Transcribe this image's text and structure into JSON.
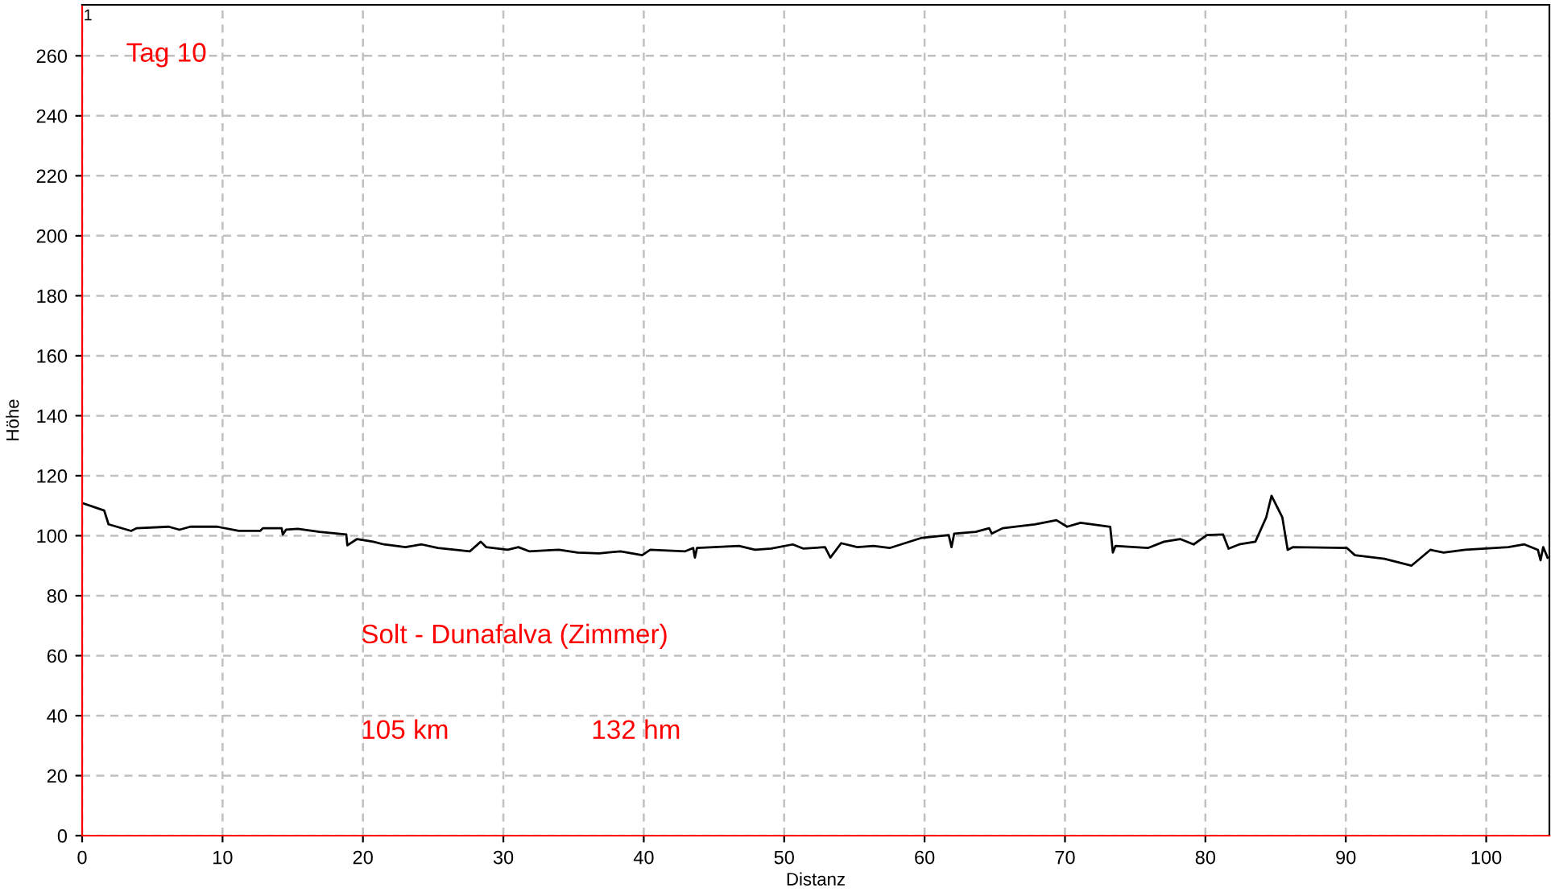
{
  "chart_data": {
    "type": "line",
    "xlabel": "Distanz",
    "ylabel": "Höhe",
    "annotations": [
      "1",
      "Tag 10",
      "Solt - Dunafalva (Zimmer)",
      "105 km",
      "132 hm"
    ],
    "xlim": [
      0,
      104.5
    ],
    "ylim": [
      0,
      277
    ],
    "xticks": [
      0,
      10,
      20,
      30,
      40,
      50,
      60,
      70,
      80,
      90,
      100
    ],
    "yticks": [
      0,
      20,
      40,
      60,
      80,
      100,
      120,
      140,
      160,
      180,
      200,
      220,
      240,
      260
    ],
    "grid": true,
    "marker": "none",
    "line_style": "solid",
    "series": [
      {
        "color": "#000000",
        "x": [
          0,
          1.57,
          1.88,
          3.49,
          3.87,
          6.17,
          6.93,
          7.7,
          9.62,
          11.15,
          12.68,
          12.87,
          14.21,
          14.29,
          14.52,
          15.36,
          16.9,
          18.81,
          18.89,
          19.58,
          20.73,
          21.49,
          23.03,
          24.18,
          25.33,
          27.62,
          28.39,
          28.77,
          30.31,
          31.07,
          31.84,
          33.37,
          33.95,
          35.29,
          36.82,
          38.35,
          39.89,
          40.46,
          42.95,
          43.52,
          43.64,
          43.79,
          46.78,
          47.93,
          49.08,
          50.61,
          51.38,
          52.91,
          53.29,
          54.06,
          55.21,
          56.36,
          57.51,
          59.81,
          61.72,
          61.92,
          62.11,
          63.64,
          64.6,
          64.79,
          65.56,
          67.85,
          69.39,
          70.15,
          71.11,
          73.22,
          73.41,
          73.6,
          75.9,
          77.05,
          78.2,
          79.16,
          80.11,
          81.26,
          81.65,
          82.41,
          83.56,
          84.33,
          84.71,
          85.48,
          85.86,
          86.25,
          90.08,
          90.65,
          92.76,
          94.67,
          96.02,
          96.97,
          98.51,
          101.57,
          102.72,
          103.68,
          103.87,
          104.06,
          104.37
        ],
        "values": [
          110.9,
          108.4,
          103.8,
          101.6,
          102.5,
          103.0,
          102.0,
          103.0,
          103.0,
          101.6,
          101.6,
          102.5,
          102.5,
          100.4,
          102.0,
          102.3,
          101.3,
          100.4,
          96.8,
          98.9,
          98.0,
          97.1,
          96.2,
          97.1,
          95.9,
          94.8,
          98.0,
          96.2,
          95.3,
          96.2,
          94.8,
          95.2,
          95.3,
          94.4,
          94.1,
          94.8,
          93.5,
          95.3,
          94.8,
          95.9,
          92.7,
          95.9,
          96.6,
          95.3,
          95.7,
          97.1,
          95.7,
          96.2,
          92.7,
          97.5,
          96.2,
          96.6,
          95.9,
          99.3,
          100.2,
          96.2,
          100.7,
          101.3,
          102.5,
          100.7,
          102.5,
          103.8,
          105.2,
          103.0,
          104.3,
          103.0,
          94.4,
          96.6,
          95.9,
          98.0,
          98.9,
          97.1,
          100.2,
          100.4,
          95.7,
          97.1,
          98.0,
          106.1,
          113.3,
          106.1,
          95.3,
          96.2,
          95.9,
          93.5,
          92.3,
          90.0,
          95.3,
          94.4,
          95.3,
          96.2,
          97.1,
          95.3,
          91.8,
          96.2,
          92.7
        ]
      }
    ]
  }
}
